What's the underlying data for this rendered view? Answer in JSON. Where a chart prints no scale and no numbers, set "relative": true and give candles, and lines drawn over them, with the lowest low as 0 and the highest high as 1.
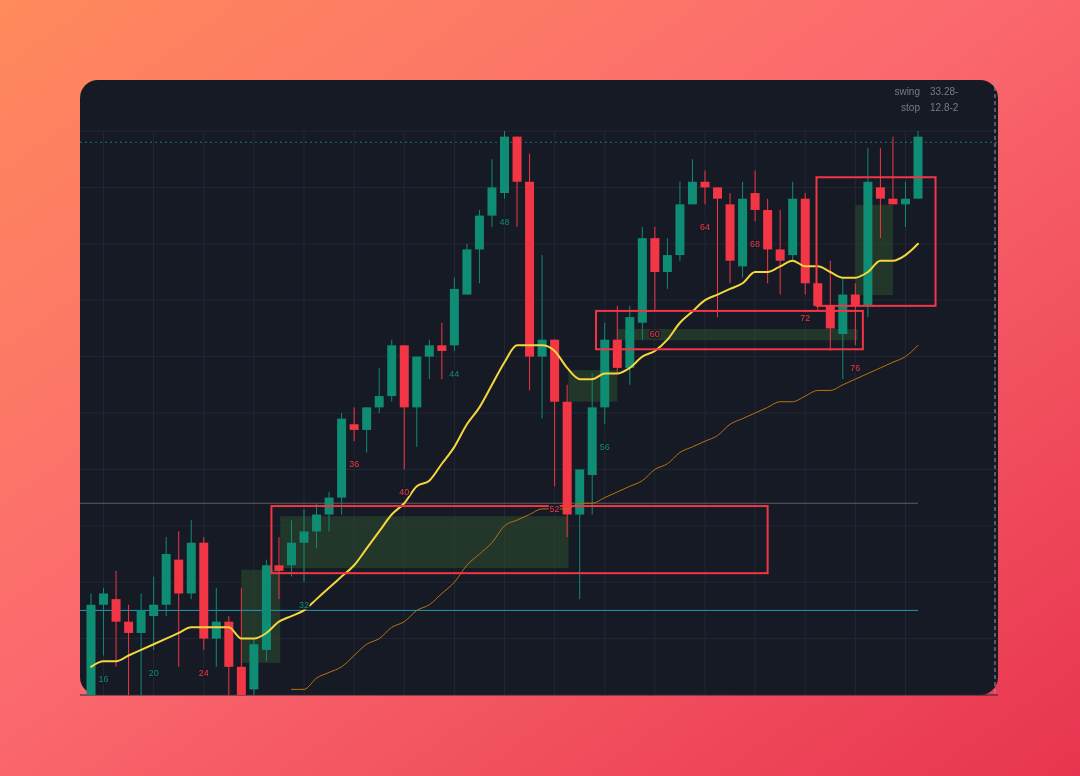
{
  "chart_data": {
    "type": "candlestick",
    "relative": true,
    "grid": true,
    "categories": [
      null,
      "16",
      null,
      null,
      null,
      "20",
      null,
      null,
      null,
      "24",
      null,
      null,
      null,
      null,
      null,
      null,
      null,
      "32",
      null,
      null,
      null,
      "36",
      null,
      null,
      null,
      "40",
      null,
      null,
      null,
      "44",
      null,
      null,
      null,
      "48",
      null,
      null,
      null,
      "52",
      null,
      null,
      null,
      "56",
      null,
      null,
      null,
      "60",
      null,
      null,
      null,
      "64",
      null,
      null,
      null,
      "68",
      null,
      null,
      null,
      "72",
      null,
      null,
      null,
      "76",
      null,
      null,
      null,
      null,
      null
    ],
    "ohlc": [
      [
        0.0,
        0.18,
        0.0,
        0.16
      ],
      [
        0.16,
        0.19,
        0.07,
        0.18
      ],
      [
        0.17,
        0.22,
        0.05,
        0.13
      ],
      [
        0.13,
        0.16,
        0.0,
        0.11
      ],
      [
        0.11,
        0.18,
        0.0,
        0.15
      ],
      [
        0.14,
        0.21,
        0.08,
        0.16
      ],
      [
        0.16,
        0.28,
        0.14,
        0.25
      ],
      [
        0.24,
        0.29,
        0.05,
        0.18
      ],
      [
        0.18,
        0.31,
        0.17,
        0.27
      ],
      [
        0.27,
        0.28,
        0.08,
        0.1
      ],
      [
        0.1,
        0.19,
        0.05,
        0.13
      ],
      [
        0.13,
        0.14,
        0.0,
        0.05
      ],
      [
        0.05,
        0.19,
        0.0,
        0.0
      ],
      [
        0.01,
        0.1,
        0.0,
        0.09
      ],
      [
        0.08,
        0.24,
        0.06,
        0.23
      ],
      [
        0.23,
        0.28,
        0.17,
        0.22
      ],
      [
        0.23,
        0.31,
        0.21,
        0.27
      ],
      [
        0.27,
        0.33,
        0.2,
        0.29
      ],
      [
        0.29,
        0.34,
        0.26,
        0.32
      ],
      [
        0.32,
        0.36,
        0.29,
        0.35
      ],
      [
        0.35,
        0.5,
        0.32,
        0.49
      ],
      [
        0.48,
        0.51,
        0.45,
        0.47
      ],
      [
        0.47,
        0.51,
        0.43,
        0.51
      ],
      [
        0.51,
        0.58,
        0.5,
        0.53
      ],
      [
        0.53,
        0.63,
        0.52,
        0.62
      ],
      [
        0.62,
        0.62,
        0.4,
        0.51
      ],
      [
        0.51,
        0.6,
        0.44,
        0.6
      ],
      [
        0.6,
        0.63,
        0.56,
        0.62
      ],
      [
        0.62,
        0.66,
        0.56,
        0.61
      ],
      [
        0.62,
        0.74,
        0.61,
        0.72
      ],
      [
        0.71,
        0.8,
        0.71,
        0.79
      ],
      [
        0.79,
        0.86,
        0.73,
        0.85
      ],
      [
        0.85,
        0.95,
        0.83,
        0.9
      ],
      [
        0.89,
        1.0,
        0.88,
        0.99
      ],
      [
        0.99,
        0.99,
        0.83,
        0.91
      ],
      [
        0.91,
        0.96,
        0.54,
        0.6
      ],
      [
        0.6,
        0.78,
        0.49,
        0.63
      ],
      [
        0.63,
        0.63,
        0.37,
        0.52
      ],
      [
        0.52,
        0.55,
        0.28,
        0.32
      ],
      [
        0.32,
        0.4,
        0.17,
        0.4
      ],
      [
        0.39,
        0.57,
        0.32,
        0.51
      ],
      [
        0.51,
        0.66,
        0.48,
        0.63
      ],
      [
        0.63,
        0.69,
        0.57,
        0.58
      ],
      [
        0.58,
        0.69,
        0.55,
        0.67
      ],
      [
        0.66,
        0.83,
        0.63,
        0.81
      ],
      [
        0.81,
        0.83,
        0.68,
        0.75
      ],
      [
        0.75,
        0.81,
        0.72,
        0.78
      ],
      [
        0.78,
        0.91,
        0.77,
        0.87
      ],
      [
        0.87,
        0.95,
        0.87,
        0.91
      ],
      [
        0.91,
        0.93,
        0.87,
        0.9
      ],
      [
        0.9,
        0.9,
        0.67,
        0.88
      ],
      [
        0.87,
        0.89,
        0.73,
        0.77
      ],
      [
        0.76,
        0.91,
        0.74,
        0.88
      ],
      [
        0.89,
        0.93,
        0.84,
        0.86
      ],
      [
        0.86,
        0.88,
        0.73,
        0.79
      ],
      [
        0.79,
        0.86,
        0.71,
        0.77
      ],
      [
        0.78,
        0.91,
        0.77,
        0.88
      ],
      [
        0.88,
        0.89,
        0.71,
        0.73
      ],
      [
        0.73,
        0.73,
        0.68,
        0.69
      ],
      [
        0.69,
        0.77,
        0.61,
        0.65
      ],
      [
        0.64,
        0.74,
        0.56,
        0.71
      ],
      [
        0.71,
        0.73,
        0.62,
        0.69
      ],
      [
        0.69,
        0.97,
        0.67,
        0.91
      ],
      [
        0.9,
        0.97,
        0.81,
        0.88
      ],
      [
        0.88,
        0.99,
        0.87,
        0.87
      ],
      [
        0.87,
        0.91,
        0.83,
        0.88
      ],
      [
        0.88,
        1.0,
        0.88,
        0.99
      ]
    ],
    "colors": [
      "#0e8c74",
      "#0e8c74",
      "#f23645",
      "#f23645",
      "#0e8c74",
      "#0e8c74",
      "#0e8c74",
      "#f23645",
      "#0e8c74",
      "#f23645",
      "#0e8c74",
      "#f23645",
      "#f23645",
      "#0e8c74",
      "#0e8c74",
      "#f23645",
      "#0e8c74",
      "#0e8c74",
      "#0e8c74",
      "#0e8c74",
      "#0e8c74",
      "#f23645",
      "#0e8c74",
      "#0e8c74",
      "#0e8c74",
      "#f23645",
      "#0e8c74",
      "#0e8c74",
      "#f23645",
      "#0e8c74",
      "#0e8c74",
      "#0e8c74",
      "#0e8c74",
      "#0e8c74",
      "#f23645",
      "#f23645",
      "#0e8c74",
      "#f23645",
      "#f23645",
      "#0e8c74",
      "#0e8c74",
      "#0e8c74",
      "#f23645",
      "#0e8c74",
      "#0e8c74",
      "#f23645",
      "#0e8c74",
      "#0e8c74",
      "#0e8c74",
      "#f23645",
      "#f23645",
      "#f23645",
      "#0e8c74",
      "#f23645",
      "#f23645",
      "#f23645",
      "#0e8c74",
      "#f23645",
      "#f23645",
      "#f23645",
      "#0e8c74",
      "#f23645",
      "#0e8c74",
      "#f23645",
      "#f23645",
      "#0e8c74",
      "#0e8c74"
    ],
    "series": [
      {
        "type": "line",
        "color": "#f5d63d",
        "values": [
          0.05,
          0.06,
          0.06,
          0.07,
          0.08,
          0.09,
          0.1,
          0.11,
          0.12,
          0.12,
          0.12,
          0.12,
          0.1,
          0.1,
          0.11,
          0.13,
          0.14,
          0.15,
          0.17,
          0.19,
          0.21,
          0.23,
          0.26,
          0.29,
          0.32,
          0.34,
          0.37,
          0.38,
          0.41,
          0.44,
          0.48,
          0.51,
          0.55,
          0.59,
          0.62,
          0.62,
          0.62,
          0.61,
          0.58,
          0.56,
          0.56,
          0.57,
          0.57,
          0.58,
          0.6,
          0.61,
          0.63,
          0.66,
          0.68,
          0.7,
          0.71,
          0.72,
          0.73,
          0.75,
          0.75,
          0.76,
          0.77,
          0.76,
          0.76,
          0.75,
          0.74,
          0.74,
          0.75,
          0.77,
          0.77,
          0.78,
          0.8
        ]
      },
      {
        "type": "line",
        "color": "#b8730f",
        "values": [
          null,
          null,
          null,
          null,
          null,
          null,
          null,
          null,
          null,
          null,
          null,
          null,
          null,
          null,
          null,
          null,
          0.01,
          0.01,
          0.03,
          0.04,
          0.05,
          0.07,
          0.09,
          0.1,
          0.12,
          0.13,
          0.15,
          0.16,
          0.18,
          0.2,
          0.23,
          0.25,
          0.27,
          0.3,
          0.31,
          0.32,
          0.33,
          0.33,
          0.33,
          0.34,
          0.34,
          0.35,
          0.36,
          0.37,
          0.38,
          0.4,
          0.41,
          0.43,
          0.44,
          0.45,
          0.46,
          0.48,
          0.49,
          0.5,
          0.51,
          0.52,
          0.52,
          0.53,
          0.54,
          0.54,
          0.55,
          0.56,
          0.57,
          0.58,
          0.59,
          0.6,
          0.62
        ]
      }
    ],
    "ref_lines": [
      {
        "axis": "y",
        "value": 0.34,
        "color": "#5d606b",
        "line_style": "solid"
      },
      {
        "axis": "y",
        "value": 0.15,
        "color": "#1f9bb5",
        "line_style": "solid"
      },
      {
        "axis": "y",
        "value": 0.98,
        "color": "#1e6f73",
        "line_style": "dotted"
      }
    ],
    "annotations": [
      "swing",
      "33.28-",
      "stop",
      "12.8-2"
    ]
  }
}
